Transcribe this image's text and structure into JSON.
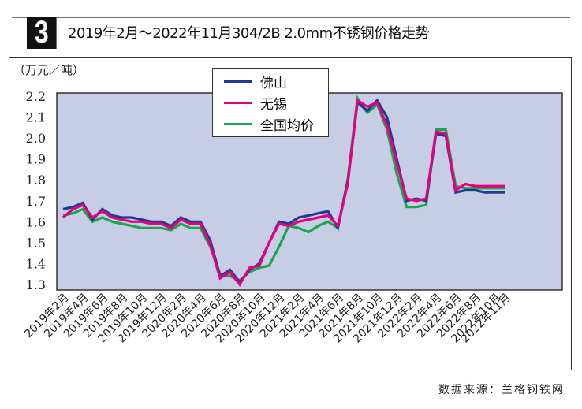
{
  "header": {
    "badge_number": "3",
    "title": "2019年2月～2022年11月304/2B 2.0mm不锈钢价格走势"
  },
  "unit_label": "（万元／吨）",
  "source": "数据来源：兰格钢铁网",
  "legend": {
    "items": [
      {
        "label": "佛山",
        "color": "#1f3a93"
      },
      {
        "label": "无锡",
        "color": "#e6007e"
      },
      {
        "label": "全国均价",
        "color": "#1aa64b"
      }
    ]
  },
  "chart_data": {
    "type": "line",
    "title": "2019年2月～2022年11月304/2B 2.0mm不锈钢价格走势",
    "xlabel": "",
    "ylabel": "万元／吨",
    "ylim": [
      1.3,
      2.2
    ],
    "yticks": [
      "2.2",
      "2.1",
      "2.0",
      "1.9",
      "1.8",
      "1.7",
      "1.6",
      "1.5",
      "1.4",
      "1.3"
    ],
    "grid": false,
    "legend_position": "top-center",
    "background_color": "#c8cde6",
    "x_tick_labels": [
      "2019年2月",
      "2019年4月",
      "2019年6月",
      "2019年8月",
      "2019年10月",
      "2019年12月",
      "2020年2月",
      "2020年4月",
      "2020年6月",
      "2020年8月",
      "2020年10月",
      "2020年12月",
      "2021年2月",
      "2021年4月",
      "2021年6月",
      "2021年8月",
      "2021年10月",
      "2021年12月",
      "2022年2月",
      "2022年4月",
      "2022年6月",
      "2022年8月",
      "2022年10月",
      "2022年11月"
    ],
    "x": [
      "2019-02",
      "2019-03",
      "2019-04",
      "2019-05",
      "2019-06",
      "2019-07",
      "2019-08",
      "2019-09",
      "2019-10",
      "2019-11",
      "2019-12",
      "2020-01",
      "2020-02",
      "2020-03",
      "2020-04",
      "2020-05",
      "2020-06",
      "2020-07",
      "2020-08",
      "2020-09",
      "2020-10",
      "2020-11",
      "2020-12",
      "2021-01",
      "2021-02",
      "2021-03",
      "2021-04",
      "2021-05",
      "2021-06",
      "2021-07",
      "2021-08",
      "2021-09",
      "2021-10",
      "2021-11",
      "2021-12",
      "2022-01",
      "2022-02",
      "2022-03",
      "2022-04",
      "2022-05",
      "2022-06",
      "2022-07",
      "2022-08",
      "2022-09",
      "2022-10",
      "2022-11"
    ],
    "series": [
      {
        "name": "佛山",
        "color": "#1f3a93",
        "values": [
          1.66,
          1.67,
          1.69,
          1.61,
          1.66,
          1.63,
          1.62,
          1.62,
          1.61,
          1.6,
          1.6,
          1.58,
          1.62,
          1.6,
          1.6,
          1.51,
          1.34,
          1.37,
          1.31,
          1.37,
          1.4,
          1.5,
          1.6,
          1.59,
          1.62,
          1.63,
          1.64,
          1.65,
          1.57,
          1.79,
          2.17,
          2.13,
          2.18,
          2.1,
          1.9,
          1.7,
          1.71,
          1.7,
          2.02,
          2.01,
          1.74,
          1.75,
          1.75,
          1.74,
          1.74,
          1.74
        ]
      },
      {
        "name": "无锡",
        "color": "#e6007e",
        "values": [
          1.62,
          1.66,
          1.68,
          1.62,
          1.65,
          1.62,
          1.61,
          1.6,
          1.6,
          1.59,
          1.59,
          1.57,
          1.61,
          1.59,
          1.59,
          1.49,
          1.33,
          1.36,
          1.3,
          1.38,
          1.39,
          1.5,
          1.59,
          1.58,
          1.6,
          1.61,
          1.62,
          1.63,
          1.58,
          1.78,
          2.18,
          2.15,
          2.17,
          2.06,
          1.88,
          1.71,
          1.7,
          1.71,
          2.03,
          2.02,
          1.75,
          1.78,
          1.77,
          1.77,
          1.77,
          1.77
        ]
      },
      {
        "name": "全国均价",
        "color": "#1aa64b",
        "values": [
          1.63,
          1.64,
          1.66,
          1.6,
          1.62,
          1.6,
          1.59,
          1.58,
          1.57,
          1.57,
          1.57,
          1.56,
          1.59,
          1.57,
          1.57,
          1.48,
          1.35,
          1.34,
          1.32,
          1.36,
          1.38,
          1.39,
          1.48,
          1.58,
          1.57,
          1.55,
          1.58,
          1.6,
          1.57,
          1.8,
          2.19,
          2.12,
          2.16,
          2.04,
          1.83,
          1.67,
          1.67,
          1.68,
          2.04,
          2.04,
          1.77,
          1.76,
          1.76,
          1.76,
          1.76,
          1.76
        ]
      }
    ]
  }
}
